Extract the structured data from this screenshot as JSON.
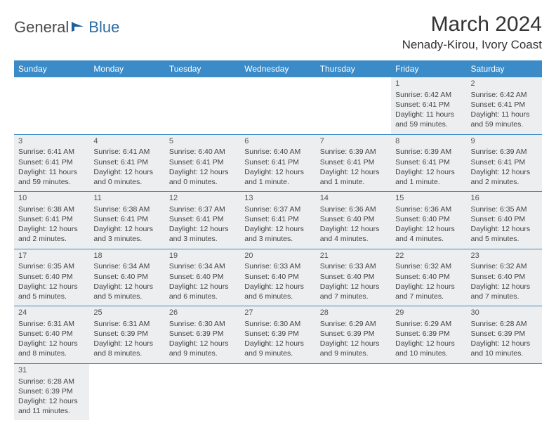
{
  "logo": {
    "text1": "General",
    "text2": "Blue"
  },
  "title": "March 2024",
  "location": "Nenady-Kirou, Ivory Coast",
  "colors": {
    "header_bg": "#3b8bc8",
    "header_text": "#ffffff",
    "shaded_bg": "#eceeef",
    "row_divider": "#3b8bc8",
    "body_text": "#444444",
    "title_text": "#333333"
  },
  "typography": {
    "title_fontsize_pt": 22,
    "location_fontsize_pt": 13,
    "dayheader_fontsize_pt": 9,
    "cell_fontsize_pt": 8
  },
  "weekdays": [
    "Sunday",
    "Monday",
    "Tuesday",
    "Wednesday",
    "Thursday",
    "Friday",
    "Saturday"
  ],
  "weeks": [
    [
      null,
      null,
      null,
      null,
      null,
      {
        "n": "1",
        "sr": "Sunrise: 6:42 AM",
        "ss": "Sunset: 6:41 PM",
        "dl": "Daylight: 11 hours and 59 minutes."
      },
      {
        "n": "2",
        "sr": "Sunrise: 6:42 AM",
        "ss": "Sunset: 6:41 PM",
        "dl": "Daylight: 11 hours and 59 minutes."
      }
    ],
    [
      {
        "n": "3",
        "sr": "Sunrise: 6:41 AM",
        "ss": "Sunset: 6:41 PM",
        "dl": "Daylight: 11 hours and 59 minutes."
      },
      {
        "n": "4",
        "sr": "Sunrise: 6:41 AM",
        "ss": "Sunset: 6:41 PM",
        "dl": "Daylight: 12 hours and 0 minutes."
      },
      {
        "n": "5",
        "sr": "Sunrise: 6:40 AM",
        "ss": "Sunset: 6:41 PM",
        "dl": "Daylight: 12 hours and 0 minutes."
      },
      {
        "n": "6",
        "sr": "Sunrise: 6:40 AM",
        "ss": "Sunset: 6:41 PM",
        "dl": "Daylight: 12 hours and 1 minute."
      },
      {
        "n": "7",
        "sr": "Sunrise: 6:39 AM",
        "ss": "Sunset: 6:41 PM",
        "dl": "Daylight: 12 hours and 1 minute."
      },
      {
        "n": "8",
        "sr": "Sunrise: 6:39 AM",
        "ss": "Sunset: 6:41 PM",
        "dl": "Daylight: 12 hours and 1 minute."
      },
      {
        "n": "9",
        "sr": "Sunrise: 6:39 AM",
        "ss": "Sunset: 6:41 PM",
        "dl": "Daylight: 12 hours and 2 minutes."
      }
    ],
    [
      {
        "n": "10",
        "sr": "Sunrise: 6:38 AM",
        "ss": "Sunset: 6:41 PM",
        "dl": "Daylight: 12 hours and 2 minutes."
      },
      {
        "n": "11",
        "sr": "Sunrise: 6:38 AM",
        "ss": "Sunset: 6:41 PM",
        "dl": "Daylight: 12 hours and 3 minutes."
      },
      {
        "n": "12",
        "sr": "Sunrise: 6:37 AM",
        "ss": "Sunset: 6:41 PM",
        "dl": "Daylight: 12 hours and 3 minutes."
      },
      {
        "n": "13",
        "sr": "Sunrise: 6:37 AM",
        "ss": "Sunset: 6:41 PM",
        "dl": "Daylight: 12 hours and 3 minutes."
      },
      {
        "n": "14",
        "sr": "Sunrise: 6:36 AM",
        "ss": "Sunset: 6:40 PM",
        "dl": "Daylight: 12 hours and 4 minutes."
      },
      {
        "n": "15",
        "sr": "Sunrise: 6:36 AM",
        "ss": "Sunset: 6:40 PM",
        "dl": "Daylight: 12 hours and 4 minutes."
      },
      {
        "n": "16",
        "sr": "Sunrise: 6:35 AM",
        "ss": "Sunset: 6:40 PM",
        "dl": "Daylight: 12 hours and 5 minutes."
      }
    ],
    [
      {
        "n": "17",
        "sr": "Sunrise: 6:35 AM",
        "ss": "Sunset: 6:40 PM",
        "dl": "Daylight: 12 hours and 5 minutes."
      },
      {
        "n": "18",
        "sr": "Sunrise: 6:34 AM",
        "ss": "Sunset: 6:40 PM",
        "dl": "Daylight: 12 hours and 5 minutes."
      },
      {
        "n": "19",
        "sr": "Sunrise: 6:34 AM",
        "ss": "Sunset: 6:40 PM",
        "dl": "Daylight: 12 hours and 6 minutes."
      },
      {
        "n": "20",
        "sr": "Sunrise: 6:33 AM",
        "ss": "Sunset: 6:40 PM",
        "dl": "Daylight: 12 hours and 6 minutes."
      },
      {
        "n": "21",
        "sr": "Sunrise: 6:33 AM",
        "ss": "Sunset: 6:40 PM",
        "dl": "Daylight: 12 hours and 7 minutes."
      },
      {
        "n": "22",
        "sr": "Sunrise: 6:32 AM",
        "ss": "Sunset: 6:40 PM",
        "dl": "Daylight: 12 hours and 7 minutes."
      },
      {
        "n": "23",
        "sr": "Sunrise: 6:32 AM",
        "ss": "Sunset: 6:40 PM",
        "dl": "Daylight: 12 hours and 7 minutes."
      }
    ],
    [
      {
        "n": "24",
        "sr": "Sunrise: 6:31 AM",
        "ss": "Sunset: 6:40 PM",
        "dl": "Daylight: 12 hours and 8 minutes."
      },
      {
        "n": "25",
        "sr": "Sunrise: 6:31 AM",
        "ss": "Sunset: 6:39 PM",
        "dl": "Daylight: 12 hours and 8 minutes."
      },
      {
        "n": "26",
        "sr": "Sunrise: 6:30 AM",
        "ss": "Sunset: 6:39 PM",
        "dl": "Daylight: 12 hours and 9 minutes."
      },
      {
        "n": "27",
        "sr": "Sunrise: 6:30 AM",
        "ss": "Sunset: 6:39 PM",
        "dl": "Daylight: 12 hours and 9 minutes."
      },
      {
        "n": "28",
        "sr": "Sunrise: 6:29 AM",
        "ss": "Sunset: 6:39 PM",
        "dl": "Daylight: 12 hours and 9 minutes."
      },
      {
        "n": "29",
        "sr": "Sunrise: 6:29 AM",
        "ss": "Sunset: 6:39 PM",
        "dl": "Daylight: 12 hours and 10 minutes."
      },
      {
        "n": "30",
        "sr": "Sunrise: 6:28 AM",
        "ss": "Sunset: 6:39 PM",
        "dl": "Daylight: 12 hours and 10 minutes."
      }
    ],
    [
      {
        "n": "31",
        "sr": "Sunrise: 6:28 AM",
        "ss": "Sunset: 6:39 PM",
        "dl": "Daylight: 12 hours and 11 minutes."
      },
      null,
      null,
      null,
      null,
      null,
      null
    ]
  ]
}
